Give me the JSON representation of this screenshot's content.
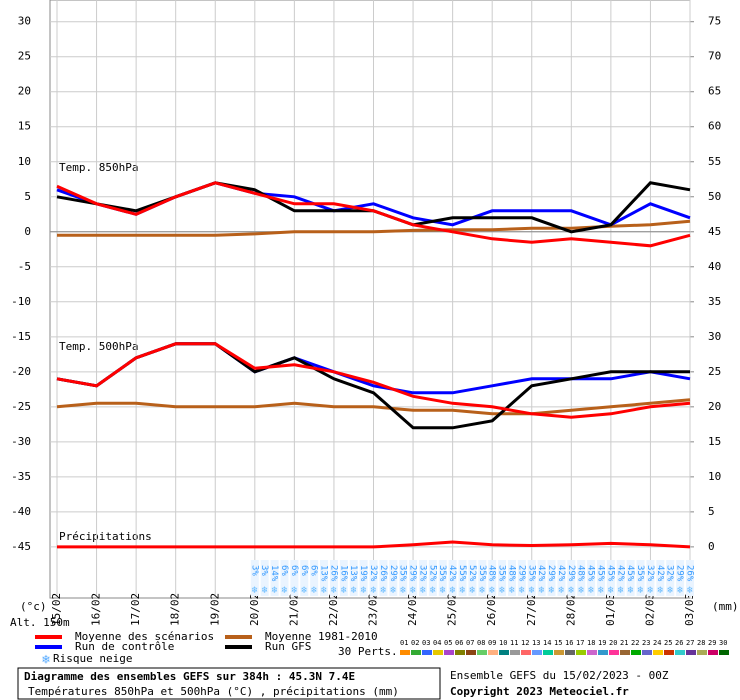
{
  "chart_data": {
    "type": "line",
    "categories": [
      "15/02",
      "16/02",
      "17/02",
      "18/02",
      "19/02",
      "20/02",
      "21/02",
      "22/02",
      "23/02",
      "24/02",
      "25/02",
      "26/02",
      "27/02",
      "28/02",
      "01/03",
      "02/03",
      "03/03"
    ],
    "ylim": [
      -52.3,
      33.1
    ],
    "yticks": [
      -45,
      -40,
      -35,
      -30,
      -25,
      -20,
      -15,
      -10,
      -5,
      0,
      5,
      10,
      15,
      20,
      25,
      30
    ],
    "y2lim": [
      -7.3,
      78.1
    ],
    "y2ticks": [
      0,
      5,
      10,
      15,
      20,
      25,
      30,
      35,
      40,
      45,
      50,
      55,
      60,
      65,
      70,
      75
    ],
    "y_label": "(°c)",
    "y2_label": "(mm)",
    "altitude": "Alt. 150m",
    "grid": true,
    "annotations": [
      "Temp. 850hPa",
      "Temp. 500hPa",
      "Précipitations"
    ],
    "series": [
      {
        "name": "Moyenne des scénarios",
        "color": "#ff0000",
        "values": [
          6.5,
          4,
          2.5,
          5,
          7,
          5.5,
          4,
          4,
          3,
          1,
          0,
          -1,
          -1.5,
          -1,
          -1.5,
          -2,
          -0.5
        ]
      },
      {
        "name": "Moyenne 1981-2010",
        "color": "#b8601a",
        "values": [
          -0.5,
          -0.5,
          -0.5,
          -0.5,
          -0.5,
          -0.3,
          0,
          0,
          0,
          0.2,
          0.3,
          0.3,
          0.5,
          0.5,
          0.8,
          1,
          1.5
        ]
      },
      {
        "name": "Run de contrôle",
        "color": "#0000ff",
        "values": [
          6,
          4,
          2.5,
          5,
          7,
          5.5,
          5,
          3,
          4,
          2,
          1,
          3,
          3,
          3,
          1,
          4,
          2
        ]
      },
      {
        "name": "Run GFS",
        "color": "#000000",
        "values": [
          5,
          4,
          3,
          5,
          7,
          6,
          3,
          3,
          3,
          1,
          2,
          2,
          2,
          0,
          1,
          7,
          6
        ]
      },
      {
        "color": "#ff0000",
        "values": [
          -21,
          -22,
          -18,
          -16,
          -16,
          -19.5,
          -19,
          -20,
          -21.5,
          -23.5,
          -24.5,
          -25,
          -26,
          -26.5,
          -26,
          -25,
          -24.5
        ]
      },
      {
        "color": "#b8601a",
        "values": [
          -25,
          -24.5,
          -24.5,
          -25,
          -25,
          -25,
          -24.5,
          -25,
          -25,
          -25.5,
          -25.5,
          -26,
          -26,
          -25.5,
          -25,
          -24.5,
          -24
        ]
      },
      {
        "color": "#0000ff",
        "values": [
          -21,
          -22,
          -18,
          -16,
          -16,
          -20,
          -18,
          -20,
          -22,
          -23,
          -23,
          -22,
          -21,
          -21,
          -21,
          -20,
          -21
        ]
      },
      {
        "color": "#000000",
        "values": [
          -21,
          -22,
          -18,
          -16,
          -16,
          -20,
          -18,
          -21,
          -23,
          -28,
          -28,
          -27,
          -22,
          -21,
          -20,
          -20,
          -20
        ]
      },
      {
        "color": "#ff0000",
        "axis": "y2",
        "values": [
          0,
          0,
          0,
          0,
          0,
          0,
          0,
          0,
          0,
          0.3,
          0.7,
          0.3,
          0.2,
          0.3,
          0.5,
          0.3,
          0
        ]
      }
    ],
    "snow_risk": {
      "label": "Risque neige",
      "color": "#3399ff",
      "values": [
        3,
        3,
        14,
        6,
        6,
        6,
        6,
        13,
        26,
        16,
        13,
        19,
        32,
        26,
        29,
        35,
        29,
        32,
        52,
        35,
        42,
        55,
        52,
        35,
        48,
        35,
        48,
        29,
        35,
        42,
        29,
        42,
        29,
        48,
        45,
        45,
        45,
        42,
        45,
        35,
        32,
        42,
        32,
        29,
        26
      ],
      "value_labels": [
        "3%",
        "3%",
        "14%",
        "6%",
        "6%",
        "6%",
        "6%",
        "13%",
        "26%",
        "16%",
        "13%",
        "19%",
        "32%",
        "26%",
        "29%",
        "35%",
        "29%",
        "32%",
        "52%",
        "35%",
        "42%",
        "55%",
        "52%",
        "35%",
        "48%",
        "35%",
        "48%",
        "29%",
        "35%",
        "42%",
        "29%",
        "42%",
        "29%",
        "48%",
        "45%",
        "45%",
        "45%",
        "42%",
        "45%",
        "35%",
        "32%",
        "42%",
        "32%",
        "29%",
        "26%"
      ]
    },
    "members": {
      "label": "30 Perts.",
      "names": [
        "01",
        "02",
        "03",
        "04",
        "05",
        "06",
        "07",
        "08",
        "09",
        "10",
        "11",
        "12",
        "13",
        "14",
        "15",
        "16",
        "17",
        "18",
        "19",
        "20",
        "21",
        "22",
        "23",
        "24",
        "25",
        "26",
        "27",
        "28",
        "29",
        "30"
      ],
      "colors": [
        "#ff8c00",
        "#33aa33",
        "#3366ff",
        "#e6c800",
        "#aa44cc",
        "#808000",
        "#8b4513",
        "#66cc66",
        "#ffb080",
        "#008080",
        "#999999",
        "#ff6666",
        "#6699ff",
        "#00cc99",
        "#cc9933",
        "#666666",
        "#99cc00",
        "#cc66cc",
        "#3399cc",
        "#ff3399",
        "#996633",
        "#00aa00",
        "#6666cc",
        "#ffcc00",
        "#cc3300",
        "#33cccc",
        "#663399",
        "#aaaa55",
        "#cc0066",
        "#006600"
      ]
    },
    "title": "Diagramme des ensembles GEFS sur 384h : 45.3N 7.4E",
    "subtitle": "Températures 850hPa et 500hPa (°C) , précipitations (mm)",
    "source": "Ensemble GEFS du 15/02/2023 - 00Z",
    "copyright": "Copyright 2023 Meteociel.fr"
  }
}
